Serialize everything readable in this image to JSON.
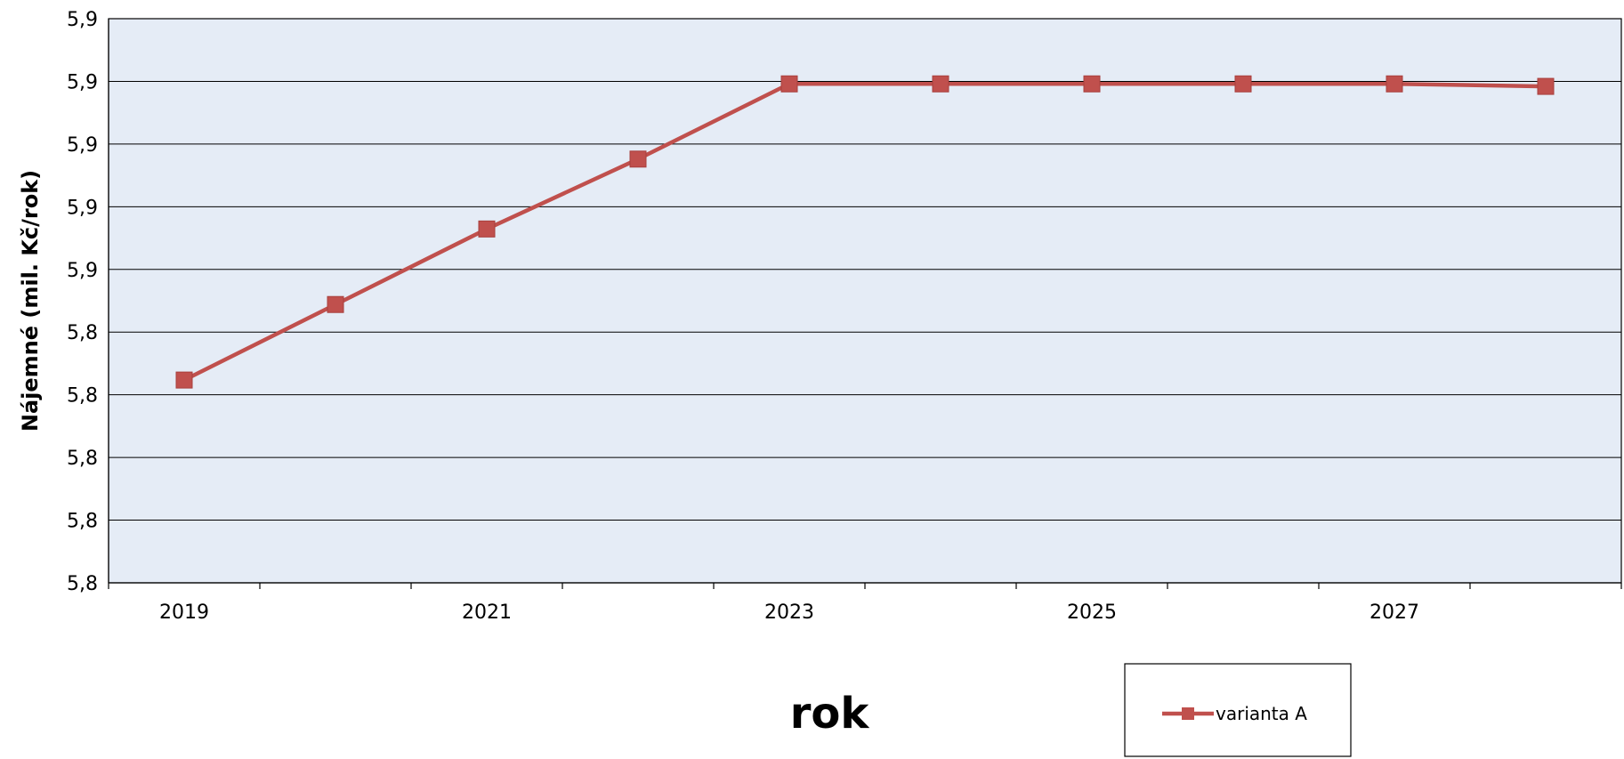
{
  "chart_data": {
    "type": "line",
    "title": "",
    "xlabel": "rok",
    "ylabel": "Nájemné (mil. Kč/rok)",
    "x": [
      2019,
      2020,
      2021,
      2022,
      2023,
      2024,
      2025,
      2026,
      2027,
      2028
    ],
    "x_tick_labels": [
      "2019",
      "2021",
      "2023",
      "2025",
      "2027"
    ],
    "y_tick_labels": [
      "5,9",
      "5,9",
      "5,9",
      "5,9",
      "5,9",
      "5,8",
      "5,8",
      "5,8",
      "5,8",
      "5,8"
    ],
    "ylim": [
      5.76,
      5.94
    ],
    "grid": true,
    "legend_position": "bottom-right",
    "series": [
      {
        "name": "varianta A",
        "color": "#c0504d",
        "values": [
          5.8247,
          5.8488,
          5.8729,
          5.8952,
          5.9192,
          5.9192,
          5.9192,
          5.9192,
          5.9192,
          5.9184
        ]
      }
    ]
  }
}
